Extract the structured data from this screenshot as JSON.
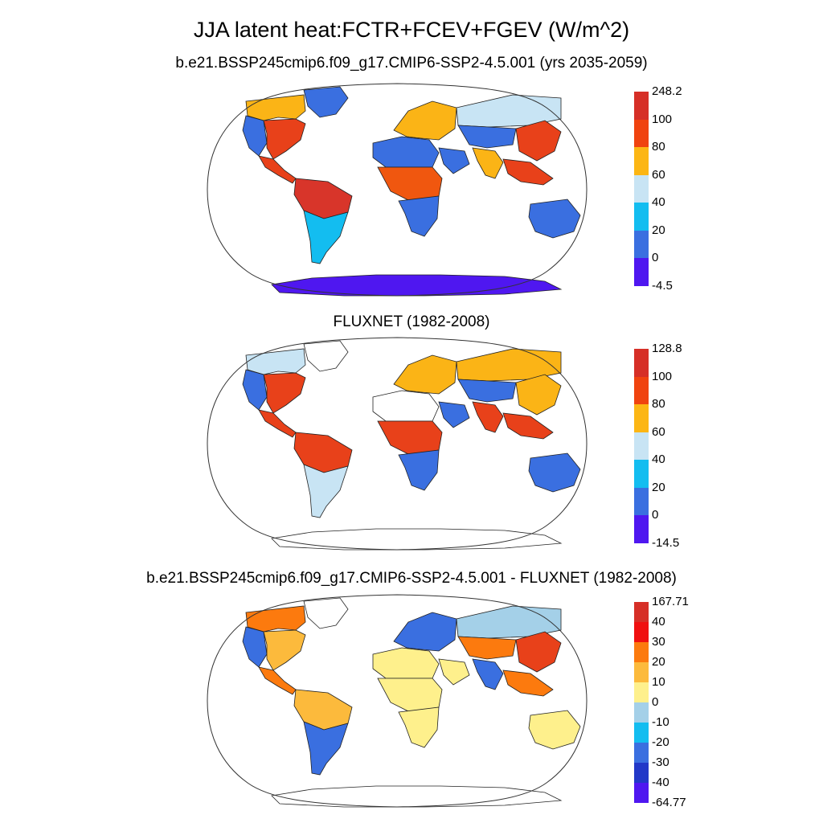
{
  "title": "JJA latent heat:FCTR+FCEV+FGEV (W/m^2)",
  "panels": [
    {
      "subtitle": "b.e21.BSSP245cmip6.f09_g17.CMIP6-SSP2-4.5.001 (yrs 2035-2059)",
      "colorbar": {
        "labels": [
          "248.2",
          "100",
          "80",
          "60",
          "40",
          "20",
          "0",
          "-4.5"
        ],
        "colors": [
          "#d62f27",
          "#f0430f",
          "#fcb614",
          "#c8e4f4",
          "#13bdf0",
          "#3a6fe0",
          "#4f17f0"
        ]
      },
      "regions": {
        "na_north": "#fbb416",
        "na_east": "#e8411a",
        "na_west": "#3a6fe0",
        "greenland": "#3a6fe0",
        "central_america": "#e8411a",
        "sa_north": "#d8352a",
        "sa_south": "#13bdf0",
        "africa_north": "#3a6fe0",
        "africa_central": "#f0570f",
        "africa_south": "#3a6fe0",
        "europe": "#fbb416",
        "arabia": "#3a6fe0",
        "siberia": "#c8e4f4",
        "east_asia": "#e8411a",
        "central_asia": "#3a6fe0",
        "india": "#fbb416",
        "se_asia": "#e8411a",
        "australia": "#3a6fe0",
        "antarctica": "#4f17f0"
      }
    },
    {
      "subtitle": "FLUXNET (1982-2008)",
      "colorbar": {
        "labels": [
          "128.8",
          "100",
          "80",
          "60",
          "40",
          "20",
          "0",
          "-14.5"
        ],
        "colors": [
          "#d62f27",
          "#f0430f",
          "#fcb614",
          "#c8e4f4",
          "#13bdf0",
          "#3a6fe0",
          "#4f17f0"
        ]
      },
      "regions": {
        "na_north": "#c8e4f4",
        "na_east": "#e8411a",
        "na_west": "#3a6fe0",
        "greenland": "#ffffff",
        "central_america": "#e8411a",
        "sa_north": "#e8411a",
        "sa_south": "#c8e4f4",
        "africa_north": "#ffffff",
        "africa_central": "#e8411a",
        "africa_south": "#3a6fe0",
        "europe": "#fbb416",
        "arabia": "#3a6fe0",
        "siberia": "#fbb416",
        "east_asia": "#fbb416",
        "central_asia": "#3a6fe0",
        "india": "#e8411a",
        "se_asia": "#e8411a",
        "australia": "#3a6fe0",
        "antarctica": "#ffffff"
      }
    },
    {
      "subtitle": "b.e21.BSSP245cmip6.f09_g17.CMIP6-SSP2-4.5.001 - FLUXNET (1982-2008)",
      "colorbar": {
        "labels": [
          "167.71",
          "40",
          "30",
          "20",
          "10",
          "0",
          "-10",
          "-20",
          "-30",
          "-40",
          "-64.77"
        ],
        "colors": [
          "#d62f27",
          "#f01010",
          "#fc7a0e",
          "#fcba3c",
          "#fef08c",
          "#a4d0e8",
          "#13bdf0",
          "#3a6fe0",
          "#2238c8",
          "#4f17f0"
        ]
      },
      "regions": {
        "na_north": "#fc7a0e",
        "na_east": "#fcba3c",
        "na_west": "#3a6fe0",
        "greenland": "#ffffff",
        "central_america": "#fc7a0e",
        "sa_north": "#fcba3c",
        "sa_south": "#3a6fe0",
        "africa_north": "#fef08c",
        "africa_central": "#fef08c",
        "africa_south": "#fef08c",
        "europe": "#3a6fe0",
        "arabia": "#fef08c",
        "siberia": "#a4d0e8",
        "east_asia": "#e8411a",
        "central_asia": "#fc7a0e",
        "india": "#3a6fe0",
        "se_asia": "#fc7a0e",
        "australia": "#fef08c",
        "antarctica": "#ffffff"
      }
    }
  ]
}
